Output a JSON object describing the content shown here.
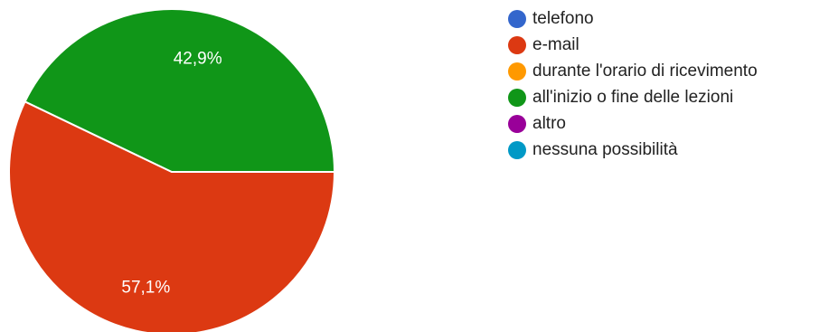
{
  "chart_data": {
    "type": "pie",
    "categories": [
      "telefono",
      "e-mail",
      "durante l'orario di ricevimento",
      "all'inizio o fine delle lezioni",
      "altro",
      "nessuna possibilità"
    ],
    "values": [
      0,
      57.1,
      0,
      42.9,
      0,
      0
    ],
    "value_labels": [
      "",
      "57,1%",
      "",
      "42,9%",
      "",
      ""
    ],
    "colors": [
      "#3366cc",
      "#dc3912",
      "#ff9900",
      "#109618",
      "#990099",
      "#0099c6"
    ],
    "legend_position": "right"
  },
  "legend": {
    "items": [
      {
        "label": "telefono",
        "color": "#3366cc"
      },
      {
        "label": "e-mail",
        "color": "#dc3912"
      },
      {
        "label": "durante l'orario di ricevimento",
        "color": "#ff9900"
      },
      {
        "label": "all'inizio o fine delle lezioni",
        "color": "#109618"
      },
      {
        "label": "altro",
        "color": "#990099"
      },
      {
        "label": "nessuna possibilità",
        "color": "#0099c6"
      }
    ]
  }
}
